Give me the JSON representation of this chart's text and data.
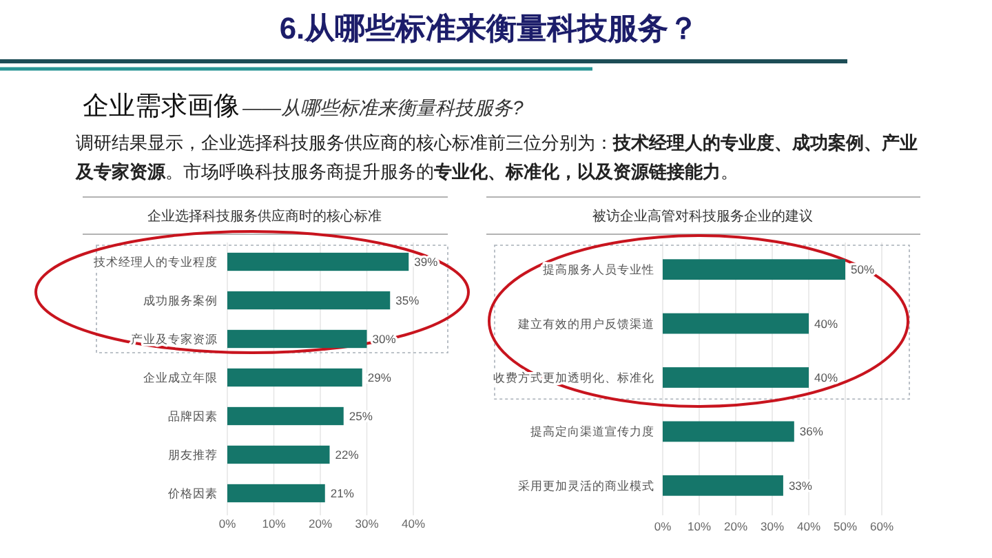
{
  "chart_data": [
    {
      "type": "other",
      "title": "6.从哪些标准来衡量科技服务？",
      "subtitle": "企业需求画像",
      "annotations": [
        "——从哪些标准来衡量科技服务?",
        "调研结果显示，企业选择科技服务供应商的核心标准前三位分别为：**技术经理人的专业度、成功案例、产业及专家资源**。市场呼唤科技服务商提升服务的**专业化、标准化，以及资源链接能力**。"
      ]
    },
    {
      "type": "bar",
      "orientation": "horizontal",
      "title": "企业选择科技服务供应商时的核心标准",
      "categories": [
        "技术经理人的专业程度",
        "成功服务案例",
        "产业及专家资源",
        "企业成立年限",
        "品牌因素",
        "朋友推荐",
        "价格因素"
      ],
      "values": [
        39,
        35,
        30,
        29,
        25,
        22,
        21
      ],
      "value_labels": [
        "39%",
        "35%",
        "30%",
        "29%",
        "25%",
        "22%",
        "21%"
      ],
      "color": "#15766a",
      "xlim": [
        0,
        40
      ],
      "xticks": [
        {
          "value": 0,
          "label": "0%"
        },
        {
          "value": 10,
          "label": "10%"
        },
        {
          "value": 20,
          "label": "20%"
        },
        {
          "value": 30,
          "label": "30%"
        },
        {
          "value": 40,
          "label": "40%"
        }
      ],
      "grid": "x"
    },
    {
      "type": "bar",
      "orientation": "horizontal",
      "title": "被访企业高管对科技服务企业的建议",
      "categories": [
        "提高服务人员专业性",
        "建立有效的用户反馈渠道",
        "收费方式更加透明化、标准化",
        "提高定向渠道宣传力度",
        "采用更加灵活的商业模式"
      ],
      "values": [
        50,
        40,
        40,
        36,
        33
      ],
      "value_labels": [
        "50%",
        "40%",
        "40%",
        "36%",
        "33%"
      ],
      "color": "#15766a",
      "xlim": [
        0,
        60
      ],
      "xticks": [
        {
          "value": 0,
          "label": "0%"
        },
        {
          "value": 10,
          "label": "10%"
        },
        {
          "value": 20,
          "label": "20%"
        },
        {
          "value": 30,
          "label": "30%"
        },
        {
          "value": 40,
          "label": "40%"
        },
        {
          "value": 50,
          "label": "50%"
        },
        {
          "value": 60,
          "label": "60%"
        }
      ],
      "grid": "x"
    }
  ]
}
